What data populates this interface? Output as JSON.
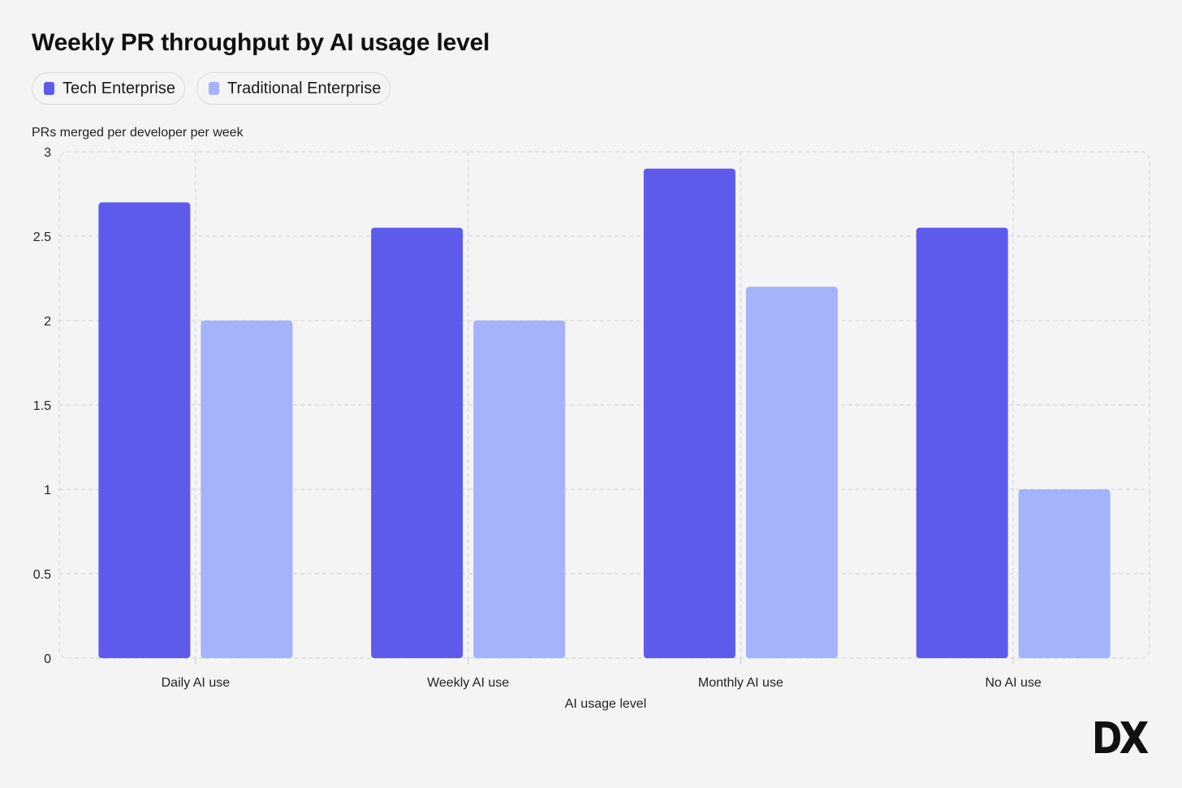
{
  "title": "Weekly PR throughput by AI usage level",
  "legend": [
    {
      "label": "Tech Enterprise",
      "color": "#5e5aec"
    },
    {
      "label": "Traditional Enterprise",
      "color": "#a4b3fa"
    }
  ],
  "logo_text": "DX",
  "chart_data": {
    "type": "bar",
    "title": "Weekly PR throughput by AI usage level",
    "xlabel": "AI usage level",
    "ylabel": "PRs merged per developer per week",
    "categories": [
      "Daily AI use",
      "Weekly AI use",
      "Monthly AI use",
      "No AI use"
    ],
    "series": [
      {
        "name": "Tech Enterprise",
        "color": "#5e5aec",
        "values": [
          2.7,
          2.55,
          2.9,
          2.55
        ]
      },
      {
        "name": "Traditional Enterprise",
        "color": "#a4b3fa",
        "values": [
          2.0,
          2.0,
          2.2,
          1.0
        ]
      }
    ],
    "ylim": [
      0,
      3
    ],
    "yticks": [
      "0",
      "0.5",
      "1",
      "1.5",
      "2",
      "2.5",
      "3"
    ],
    "grid": true,
    "legend_position": "top-left"
  }
}
